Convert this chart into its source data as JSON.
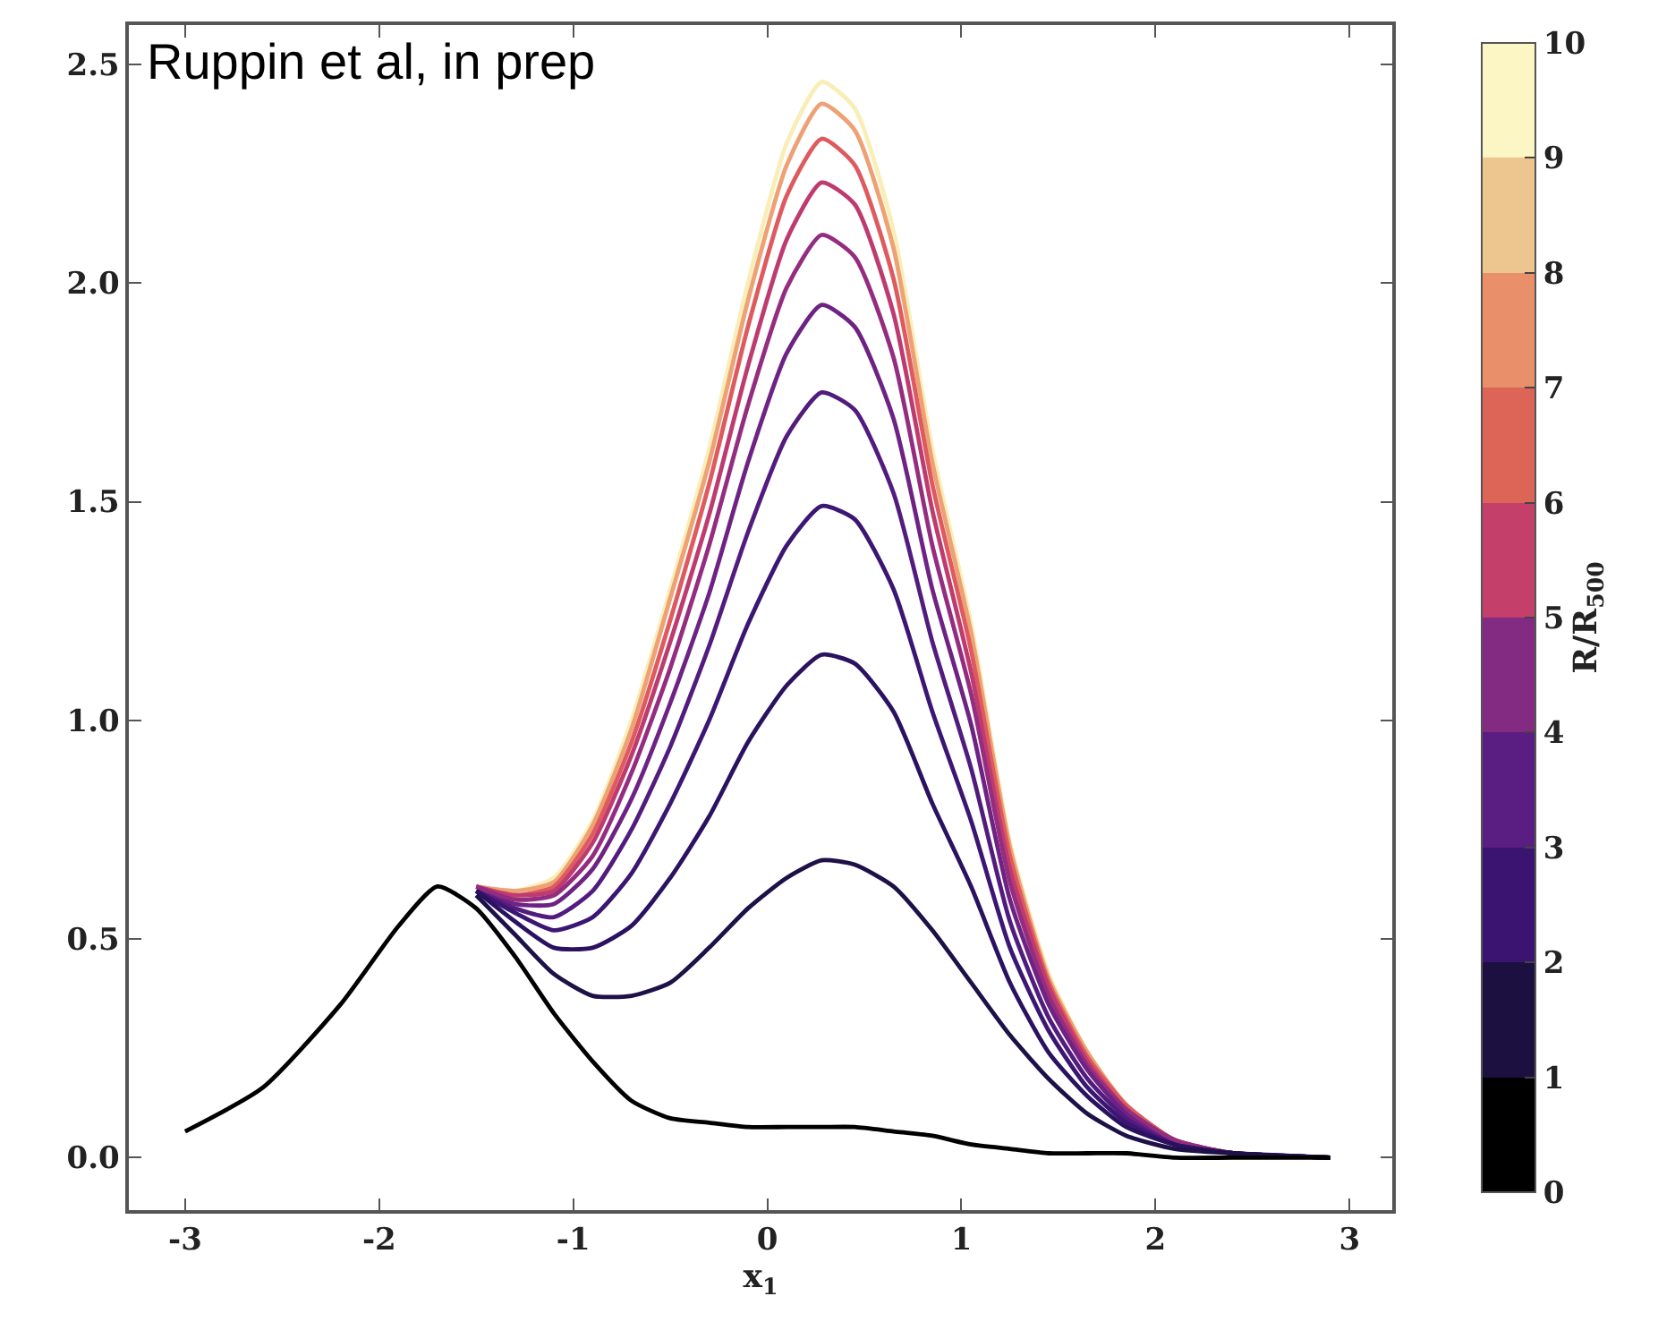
{
  "chart_data": {
    "type": "line",
    "xlabel": "x$_{1}$",
    "clabel": "R/R$_{500}$",
    "annotations": [
      "Ruppin et al, in prep"
    ],
    "x": [
      -3,
      -2.6,
      -2.2,
      -1.9,
      -1.7,
      -1.5,
      -1.3,
      -1.1,
      -0.9,
      -0.7,
      -0.5,
      -0.3,
      -0.1,
      0.1,
      0.28,
      0.45,
      0.65,
      0.85,
      1.05,
      1.25,
      1.45,
      1.65,
      1.85,
      2.1,
      2.4,
      2.9
    ],
    "series": [
      {
        "color": "#000000",
        "values": [
          0.06,
          0.16,
          0.35,
          0.53,
          0.62,
          0.57,
          0.46,
          0.33,
          0.22,
          0.13,
          0.09,
          0.08,
          0.07,
          0.07,
          0.07,
          0.07,
          0.06,
          0.05,
          0.03,
          0.02,
          0.01,
          0.01,
          0.01,
          0.0,
          0.0,
          0.0
        ]
      },
      {
        "color": "#1d1147",
        "values": [
          null,
          null,
          null,
          null,
          null,
          0.6,
          0.51,
          0.42,
          0.37,
          0.37,
          0.4,
          0.48,
          0.57,
          0.64,
          0.68,
          0.67,
          0.62,
          0.52,
          0.4,
          0.28,
          0.18,
          0.1,
          0.05,
          0.02,
          0.01,
          0.0
        ]
      },
      {
        "color": "#2a1260",
        "values": [
          null,
          null,
          null,
          null,
          null,
          0.61,
          0.54,
          0.48,
          0.48,
          0.53,
          0.64,
          0.78,
          0.95,
          1.08,
          1.15,
          1.13,
          1.02,
          0.81,
          0.62,
          0.4,
          0.24,
          0.14,
          0.07,
          0.03,
          0.01,
          0.0
        ]
      },
      {
        "color": "#3c1673",
        "values": [
          null,
          null,
          null,
          null,
          null,
          0.61,
          0.56,
          0.52,
          0.55,
          0.65,
          0.81,
          1.0,
          1.22,
          1.4,
          1.49,
          1.46,
          1.3,
          1.02,
          0.77,
          0.48,
          0.29,
          0.16,
          0.08,
          0.03,
          0.01,
          0.0
        ]
      },
      {
        "color": "#521c7e",
        "values": [
          null,
          null,
          null,
          null,
          null,
          0.61,
          0.57,
          0.55,
          0.61,
          0.75,
          0.94,
          1.17,
          1.43,
          1.65,
          1.75,
          1.71,
          1.52,
          1.18,
          0.89,
          0.54,
          0.32,
          0.18,
          0.09,
          0.03,
          0.01,
          0.0
        ]
      },
      {
        "color": "#6e2384",
        "values": [
          null,
          null,
          null,
          null,
          null,
          0.61,
          0.58,
          0.58,
          0.66,
          0.82,
          1.04,
          1.29,
          1.59,
          1.84,
          1.95,
          1.9,
          1.69,
          1.3,
          0.99,
          0.59,
          0.35,
          0.2,
          0.1,
          0.03,
          0.01,
          0.0
        ]
      },
      {
        "color": "#942d80",
        "values": [
          null,
          null,
          null,
          null,
          null,
          0.62,
          0.59,
          0.6,
          0.69,
          0.88,
          1.12,
          1.4,
          1.72,
          1.99,
          2.11,
          2.06,
          1.83,
          1.4,
          1.06,
          0.63,
          0.37,
          0.21,
          0.11,
          0.04,
          0.01,
          0.0
        ]
      },
      {
        "color": "#be3b70",
        "values": [
          null,
          null,
          null,
          null,
          null,
          0.62,
          0.6,
          0.61,
          0.72,
          0.92,
          1.18,
          1.47,
          1.81,
          2.1,
          2.23,
          2.18,
          1.93,
          1.48,
          1.11,
          0.66,
          0.39,
          0.22,
          0.11,
          0.04,
          0.01,
          0.0
        ]
      },
      {
        "color": "#de5a5e",
        "values": [
          null,
          null,
          null,
          null,
          null,
          0.62,
          0.6,
          0.62,
          0.74,
          0.95,
          1.23,
          1.54,
          1.9,
          2.2,
          2.33,
          2.27,
          2.01,
          1.54,
          1.16,
          0.69,
          0.4,
          0.23,
          0.12,
          0.04,
          0.01,
          0.0
        ]
      },
      {
        "color": "#eda174",
        "values": [
          null,
          null,
          null,
          null,
          null,
          0.62,
          0.61,
          0.63,
          0.76,
          0.98,
          1.28,
          1.59,
          1.96,
          2.27,
          2.41,
          2.35,
          2.08,
          1.59,
          1.2,
          0.71,
          0.41,
          0.24,
          0.12,
          0.04,
          0.01,
          0.0
        ]
      },
      {
        "color": "#f9eeb8",
        "values": [
          null,
          null,
          null,
          null,
          null,
          0.62,
          0.61,
          0.64,
          0.77,
          1.0,
          1.3,
          1.62,
          2.0,
          2.32,
          2.46,
          2.4,
          2.12,
          1.62,
          1.22,
          0.72,
          0.42,
          0.24,
          0.12,
          0.04,
          0.01,
          0.0
        ]
      }
    ],
    "colors": [
      "#000000",
      "#1c1040",
      "#3a1470",
      "#5a1d82",
      "#832a82",
      "#c4406a",
      "#dc6558",
      "#e9906a",
      "#ecc58f",
      "#fcf6c4"
    ],
    "clim": [
      0,
      10
    ],
    "cticks": [
      0,
      1,
      2,
      3,
      4,
      5,
      6,
      7,
      8,
      9,
      10
    ],
    "xlim": [
      -3.29,
      3.22
    ],
    "ylim": [
      -0.12,
      2.59
    ],
    "xticks": [
      -3,
      -2,
      -1,
      0,
      1,
      2,
      3
    ],
    "yticks": [
      {
        "value": 0,
        "label": "0.0"
      },
      {
        "value": 0.5,
        "label": "0.5"
      },
      {
        "value": 1,
        "label": "1.0"
      },
      {
        "value": 1.5,
        "label": "1.5"
      },
      {
        "value": 2,
        "label": "2.0"
      },
      {
        "value": 2.5,
        "label": "2.5"
      }
    ],
    "line_style": "solid",
    "marker": "none"
  }
}
